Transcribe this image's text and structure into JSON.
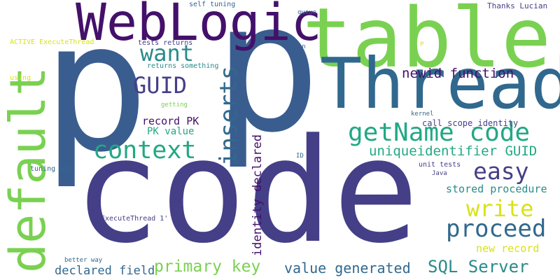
{
  "palette": {
    "dark_purple": "#44106a",
    "indigo": "#453f88",
    "blue": "#3a5d8f",
    "steel_blue": "#31688e",
    "teal": "#2a8b8a",
    "sea_green": "#22a884",
    "green": "#3dbc74",
    "light_green": "#7ad151",
    "lime": "#a7db34",
    "yellow": "#d8e219",
    "background": "#ffffff"
  },
  "words": [
    "p",
    "p",
    "code",
    "table",
    "WebLogic",
    "Thread",
    "default",
    "getName code",
    "context",
    "inserts",
    "easy",
    "proceed",
    "write",
    "GUID",
    "want",
    "primary key",
    "SQL Server",
    "value generated",
    "uniqueidentifier GUID",
    "newid function",
    "identity declared",
    "declared field",
    "stored procedure",
    "new record",
    "record PK",
    "PK value",
    "call scope_identity",
    "unit tests",
    "Thanks Lucian",
    "self tuning",
    "queue",
    "ACTIVE ExecuteThread",
    "tests returns",
    "returns something",
    "mean",
    "P",
    "using",
    "getting",
    "kernel",
    "ID",
    "Java",
    "tuning xml",
    "ExecuteThread 1'",
    "better way"
  ]
}
